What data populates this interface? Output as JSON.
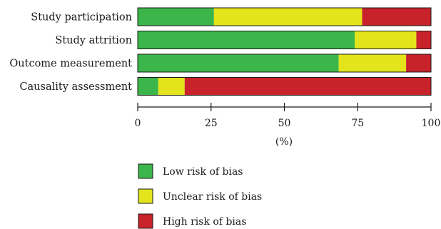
{
  "chart_data": {
    "type": "bar",
    "orientation": "horizontal",
    "stacked": true,
    "categories": [
      "Study participation",
      "Study attrition",
      "Outcome measurement",
      "Causality assessment"
    ],
    "series": [
      {
        "name": "Low risk of bias",
        "color": "#3cb54a",
        "values": [
          26,
          74,
          68.5,
          7
        ]
      },
      {
        "name": "Unclear risk of bias",
        "color": "#e3e41b",
        "values": [
          50.5,
          21,
          23,
          9
        ]
      },
      {
        "name": "High risk of bias",
        "color": "#c8232a",
        "values": [
          23.5,
          5,
          8.5,
          84
        ]
      }
    ],
    "xlim": [
      0,
      100
    ],
    "xticks": [
      0,
      25,
      50,
      75,
      100
    ],
    "xlabel": "(%)",
    "grid": false,
    "legend_position": "bottom"
  }
}
